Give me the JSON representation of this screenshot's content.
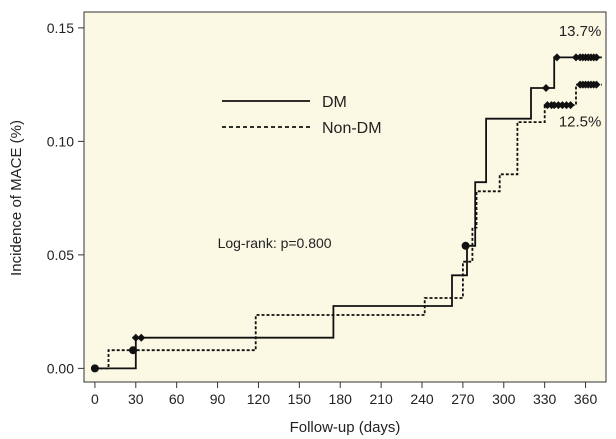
{
  "chart_data": {
    "type": "line",
    "subtype": "kaplan-meier-step",
    "title": "",
    "xlabel": "Follow-up (days)",
    "ylabel": "Incidence of MACE (%)",
    "xlim": [
      -8,
      375
    ],
    "ylim": [
      -0.006,
      0.157
    ],
    "xticks": [
      0,
      30,
      60,
      90,
      120,
      150,
      180,
      210,
      240,
      270,
      300,
      330,
      360
    ],
    "yticks": [
      0.0,
      0.05,
      0.1,
      0.15
    ],
    "ytick_labels": [
      "0.00",
      "0.05",
      "0.10",
      "0.15"
    ],
    "grid": false,
    "background": "#fbf8e4",
    "legend": {
      "position": "upper-left-center",
      "entries": [
        {
          "label": "DM",
          "style": "solid"
        },
        {
          "label": "Non-DM",
          "style": "dashed"
        }
      ]
    },
    "annotations": [
      {
        "text": "Log-rank: p=0.800",
        "x": 90,
        "y": 0.053
      },
      {
        "text": "13.7%",
        "x": 356,
        "y": 0.1465
      },
      {
        "text": "12.5%",
        "x": 356,
        "y": 0.1065
      }
    ],
    "series": [
      {
        "name": "DM",
        "style": "solid",
        "color": "#111111",
        "step_points": [
          [
            0,
            0.0
          ],
          [
            30,
            0.0
          ],
          [
            30,
            0.0135
          ],
          [
            175,
            0.0135
          ],
          [
            175,
            0.0275
          ],
          [
            262,
            0.0275
          ],
          [
            262,
            0.041
          ],
          [
            273,
            0.041
          ],
          [
            273,
            0.054
          ],
          [
            279,
            0.054
          ],
          [
            279,
            0.082
          ],
          [
            287,
            0.082
          ],
          [
            287,
            0.11
          ],
          [
            320,
            0.11
          ],
          [
            320,
            0.1235
          ],
          [
            337,
            0.1235
          ],
          [
            337,
            0.137
          ],
          [
            372,
            0.137
          ]
        ],
        "censor_marks": [
          [
            30,
            0.0135
          ],
          [
            34,
            0.0135
          ],
          [
            272,
            0.054
          ],
          [
            331,
            0.1235
          ],
          [
            339,
            0.137
          ],
          [
            353,
            0.137
          ],
          [
            356,
            0.137
          ],
          [
            358,
            0.137
          ],
          [
            360,
            0.137
          ],
          [
            362,
            0.137
          ],
          [
            364,
            0.137
          ],
          [
            366,
            0.137
          ],
          [
            368,
            0.137
          ]
        ],
        "event_marks": [
          [
            0,
            0.0
          ],
          [
            272,
            0.054
          ]
        ]
      },
      {
        "name": "Non-DM",
        "style": "dashed",
        "color": "#111111",
        "step_points": [
          [
            0,
            0.0
          ],
          [
            10,
            0.0
          ],
          [
            10,
            0.008
          ],
          [
            118,
            0.008
          ],
          [
            118,
            0.0235
          ],
          [
            242,
            0.0235
          ],
          [
            242,
            0.031
          ],
          [
            270,
            0.031
          ],
          [
            270,
            0.047
          ],
          [
            277,
            0.047
          ],
          [
            277,
            0.062
          ],
          [
            280,
            0.062
          ],
          [
            280,
            0.078
          ],
          [
            297,
            0.078
          ],
          [
            297,
            0.0855
          ],
          [
            310,
            0.0855
          ],
          [
            310,
            0.1085
          ],
          [
            330,
            0.1085
          ],
          [
            330,
            0.116
          ],
          [
            353,
            0.116
          ],
          [
            353,
            0.125
          ],
          [
            372,
            0.125
          ]
        ],
        "censor_marks": [
          [
            28,
            0.008
          ],
          [
            332,
            0.116
          ],
          [
            335,
            0.116
          ],
          [
            337,
            0.116
          ],
          [
            340,
            0.116
          ],
          [
            343,
            0.116
          ],
          [
            346,
            0.116
          ],
          [
            349,
            0.116
          ],
          [
            356,
            0.125
          ],
          [
            358,
            0.125
          ],
          [
            360,
            0.125
          ],
          [
            362,
            0.125
          ],
          [
            364,
            0.125
          ],
          [
            366,
            0.125
          ],
          [
            368,
            0.125
          ]
        ],
        "event_marks": [
          [
            28,
            0.008
          ]
        ]
      }
    ]
  }
}
